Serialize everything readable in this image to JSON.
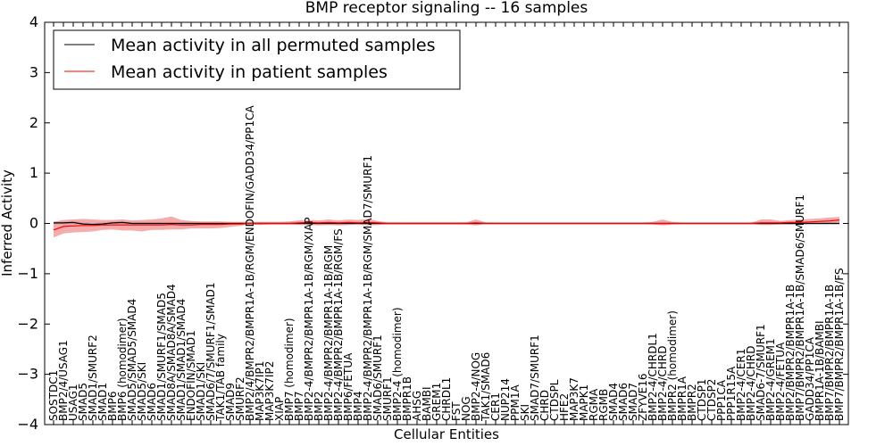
{
  "chart_data": {
    "type": "line",
    "title": "BMP receptor signaling -- 16 samples",
    "xlabel": "Cellular Entities",
    "ylabel": "Inferred Activity",
    "ylim": [
      -4,
      4
    ],
    "yticks": [
      -4,
      -3,
      -2,
      -1,
      0,
      1,
      2,
      3,
      4
    ],
    "legend_position": "top-left",
    "legend": [
      {
        "label": "Mean activity in all permuted samples",
        "color": "#000000"
      },
      {
        "label": "Mean activity in patient samples",
        "color": "#ff0000"
      }
    ],
    "colors": {
      "patient": "#ff0000",
      "patient_band": "#f08080",
      "permuted": "#000000",
      "permuted_band": "#b0b0b0"
    },
    "categories": [
      "SOSTDC1",
      "BMP2/4/USAG1",
      "USAG1",
      "SMAD5",
      "SMAD1/SMURF2",
      "SMAD1",
      "BMP6",
      "BMP6 (homodimer)",
      "SMAD5/SMAD5/SMAD4",
      "SMAD5/SKI",
      "SMAD6",
      "SMAD1/SMURF1/SMAD5",
      "SMAD8A/SMAD8A/SMAD4",
      "SMAD1/SMAD1/SMAD4",
      "ENDOFIN/SMAD1",
      "SMAD1/SKI",
      "SMAD6/7/SMURF1/SMAD1",
      "TAK1/TAB family",
      "SMAD9",
      "SMURF2",
      "BMP2/4/BMPR2/BMPR1A-1B/RGM/ENDOFIN/GADD34/PP1CA",
      "MAP3K7IP1",
      "MAP3K7IP2",
      "XIAP",
      "BMP7 (homodimer)",
      "BMP7",
      "BMP2-4/BMPR2/BMPR1A-1B/RGM/XIAP",
      "BMP2",
      "BMP2-4/BMPR2/BMPR1A-1B/RGM",
      "BMP2-4/BMPR2/BMPR1A-1B/RGM/FS",
      "BMP6/FETUA",
      "BMP4",
      "BMP2-4/BMPR2/BMPR1A-1B/RGM/SMAD7/SMURF1",
      "SMAD6/SMURF1",
      "SMURF1",
      "BMP2-4 (homodimer)",
      "BMPR1B",
      "AHSG",
      "BAMBI",
      "GREM1",
      "CHRDL1",
      "FST",
      "NOG",
      "BMP2-4/NOG",
      "TAK1/SMAD6",
      "CER1",
      "NUP214",
      "PPM1A",
      "SKI",
      "SMAD7/SMURF1",
      "CHRD",
      "CTDSPL",
      "HFE2",
      "MAP3K7",
      "MAPK1",
      "RGMA",
      "RGMB",
      "SMAD4",
      "SMAD6",
      "SMAD7",
      "ZFYVE16",
      "BMP2-4/CHRDL1",
      "BMP2-4/CHRD",
      "BMPR2 (homodimer)",
      "BMPR1A",
      "BMPR2",
      "CTDSP1",
      "CTDSP2",
      "PPP1CA",
      "PPP1R15A",
      "BMP2-4/CER1",
      "BMP2-4/CHRD",
      "SMAD6-7/SMURF1",
      "BMP2-4/GREM1",
      "BMP2-4/FETUA",
      "BMP2/BMPR2/BMPR1A-1B",
      "BMP7/BMPR2/BMPR1A-1B/SMAD6/SMURF1",
      "GADD34/PP1CA",
      "BMPR1A-1B/BAMBI",
      "BMP7/BMPR2/BMPR1A-1B",
      "BMP7/BMPR2/BMPR1A-1B/FS"
    ],
    "series": [
      {
        "name": "Mean activity in all permuted samples",
        "values": [
          0.01,
          0.01,
          0.02,
          -0.01,
          -0.02,
          -0.01,
          0.01,
          0.02,
          0.0,
          0.0,
          0.0,
          0.0,
          0.0,
          0.0,
          0.0,
          0.0,
          0.0,
          0.0,
          0.0,
          0.0,
          0.0,
          0.0,
          0.0,
          0.0,
          0.0,
          0.0,
          0.0,
          0.0,
          0.0,
          0.0,
          0.0,
          0.0,
          0.0,
          0.0,
          0.0,
          0.0,
          0.0,
          0.0,
          0.0,
          0.0,
          0.0,
          0.0,
          0.0,
          0.0,
          0.0,
          0.0,
          0.0,
          0.0,
          0.0,
          0.0,
          0.0,
          0.0,
          0.0,
          0.0,
          0.0,
          0.0,
          0.0,
          0.0,
          0.0,
          0.0,
          0.0,
          0.0,
          0.0,
          0.0,
          0.0,
          0.0,
          0.0,
          0.0,
          0.0,
          0.0,
          0.0,
          0.0,
          0.0,
          0.0,
          0.0,
          0.0,
          0.0,
          0.0,
          0.0,
          0.0,
          0.0
        ],
        "lower": [
          -0.02,
          -0.02,
          -0.02,
          -0.03,
          -0.04,
          -0.03,
          -0.02,
          -0.02,
          -0.02,
          -0.02,
          -0.02,
          -0.02,
          -0.02,
          -0.02,
          -0.02,
          -0.02,
          -0.02,
          -0.02,
          -0.02,
          -0.02,
          -0.02,
          -0.02,
          -0.02,
          -0.02,
          -0.02,
          -0.02,
          -0.02,
          -0.02,
          -0.02,
          -0.02,
          -0.02,
          -0.02,
          -0.02,
          -0.02,
          -0.02,
          -0.02,
          -0.02,
          -0.02,
          -0.02,
          -0.02,
          -0.02,
          -0.02,
          -0.02,
          -0.02,
          -0.02,
          -0.02,
          -0.02,
          -0.02,
          -0.02,
          -0.02,
          -0.02,
          -0.02,
          -0.02,
          -0.02,
          -0.02,
          -0.02,
          -0.02,
          -0.02,
          -0.02,
          -0.02,
          -0.02,
          -0.02,
          -0.02,
          -0.02,
          -0.02,
          -0.02,
          -0.02,
          -0.02,
          -0.02,
          -0.02,
          -0.02,
          -0.02,
          -0.02,
          -0.02,
          -0.02,
          -0.02,
          -0.02,
          -0.02,
          -0.02,
          -0.02,
          -0.02
        ],
        "upper": [
          0.04,
          0.04,
          0.05,
          0.02,
          0.01,
          0.02,
          0.04,
          0.05,
          0.03,
          0.03,
          0.03,
          0.03,
          0.03,
          0.03,
          0.03,
          0.03,
          0.03,
          0.03,
          0.03,
          0.03,
          0.03,
          0.03,
          0.03,
          0.03,
          0.03,
          0.03,
          0.03,
          0.03,
          0.03,
          0.03,
          0.03,
          0.03,
          0.03,
          0.03,
          0.03,
          0.03,
          0.03,
          0.03,
          0.03,
          0.03,
          0.03,
          0.03,
          0.03,
          0.03,
          0.03,
          0.03,
          0.03,
          0.03,
          0.03,
          0.03,
          0.03,
          0.03,
          0.03,
          0.03,
          0.03,
          0.03,
          0.03,
          0.03,
          0.03,
          0.03,
          0.03,
          0.03,
          0.03,
          0.03,
          0.03,
          0.03,
          0.03,
          0.03,
          0.03,
          0.03,
          0.03,
          0.03,
          0.03,
          0.03,
          0.03,
          0.03,
          0.03,
          0.03,
          0.03,
          0.03,
          0.03
        ]
      },
      {
        "name": "Mean activity in patient samples",
        "values": [
          -0.13,
          -0.06,
          -0.05,
          -0.04,
          -0.04,
          -0.03,
          -0.03,
          -0.03,
          -0.03,
          -0.03,
          -0.03,
          -0.03,
          -0.02,
          -0.03,
          -0.03,
          -0.02,
          -0.02,
          -0.02,
          -0.01,
          -0.01,
          0.0,
          0.0,
          0.0,
          0.0,
          0.0,
          0.01,
          0.02,
          0.01,
          0.02,
          0.01,
          0.02,
          0.01,
          0.02,
          0.01,
          0.0,
          0.0,
          0.0,
          0.0,
          0.0,
          0.0,
          0.0,
          0.0,
          0.0,
          0.01,
          0.0,
          0.0,
          0.0,
          0.0,
          0.0,
          0.0,
          0.0,
          0.0,
          0.0,
          0.0,
          0.0,
          0.0,
          0.0,
          0.0,
          0.0,
          0.0,
          0.0,
          0.0,
          0.0,
          0.0,
          0.0,
          0.0,
          0.0,
          0.0,
          0.0,
          0.0,
          0.0,
          0.0,
          0.01,
          0.01,
          0.01,
          0.02,
          0.02,
          0.03,
          0.04,
          0.05,
          0.07
        ],
        "lower": [
          -0.28,
          -0.2,
          -0.18,
          -0.17,
          -0.16,
          -0.13,
          -0.12,
          -0.14,
          -0.14,
          -0.16,
          -0.13,
          -0.13,
          -0.12,
          -0.12,
          -0.1,
          -0.1,
          -0.1,
          -0.09,
          -0.07,
          -0.05,
          -0.02,
          -0.03,
          -0.02,
          -0.02,
          -0.02,
          -0.03,
          -0.03,
          -0.04,
          -0.03,
          -0.04,
          -0.03,
          -0.02,
          -0.04,
          -0.03,
          -0.02,
          -0.02,
          -0.02,
          -0.02,
          -0.02,
          -0.02,
          -0.02,
          -0.02,
          -0.02,
          -0.04,
          -0.01,
          -0.01,
          -0.01,
          -0.01,
          -0.01,
          -0.01,
          -0.01,
          -0.01,
          -0.01,
          -0.01,
          -0.01,
          -0.01,
          -0.01,
          -0.01,
          -0.01,
          -0.01,
          -0.01,
          -0.02,
          -0.04,
          -0.02,
          -0.01,
          -0.01,
          -0.01,
          -0.01,
          -0.01,
          -0.01,
          -0.01,
          -0.01,
          -0.03,
          -0.03,
          -0.02,
          -0.02,
          -0.02,
          -0.01,
          -0.01,
          0.0,
          0.02
        ],
        "upper": [
          0.03,
          0.07,
          0.08,
          0.09,
          0.08,
          0.07,
          0.07,
          0.08,
          0.06,
          0.07,
          0.08,
          0.1,
          0.14,
          0.07,
          0.05,
          0.04,
          0.04,
          0.04,
          0.03,
          0.03,
          0.03,
          0.03,
          0.03,
          0.03,
          0.04,
          0.06,
          0.07,
          0.06,
          0.08,
          0.06,
          0.08,
          0.07,
          0.09,
          0.05,
          0.02,
          0.02,
          0.02,
          0.02,
          0.02,
          0.02,
          0.02,
          0.02,
          0.02,
          0.08,
          0.02,
          0.01,
          0.01,
          0.01,
          0.01,
          0.01,
          0.01,
          0.01,
          0.01,
          0.01,
          0.01,
          0.01,
          0.01,
          0.01,
          0.01,
          0.01,
          0.01,
          0.03,
          0.08,
          0.03,
          0.01,
          0.01,
          0.01,
          0.01,
          0.01,
          0.01,
          0.01,
          0.01,
          0.08,
          0.08,
          0.05,
          0.07,
          0.08,
          0.09,
          0.1,
          0.12,
          0.13
        ]
      }
    ]
  }
}
